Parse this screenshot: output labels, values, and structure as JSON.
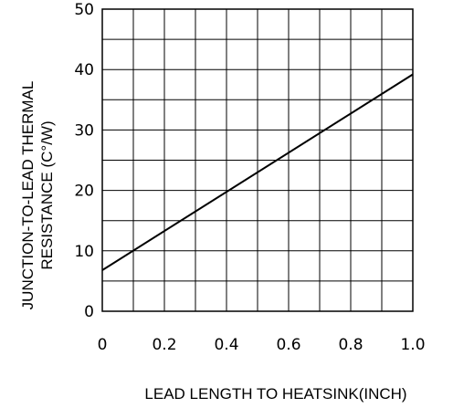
{
  "chart_data": {
    "type": "line",
    "title": "",
    "xlabel": "LEAD LENGTH TO HEATSINK(INCH)",
    "ylabel_lines": [
      "JUNCTION-TO-LEAD THERMAL",
      "RESISTANCE (C°/W)"
    ],
    "xlim": [
      0,
      1.0
    ],
    "ylim": [
      0,
      50
    ],
    "x_ticks": [
      "0",
      "0.2",
      "0.4",
      "0.6",
      "0.8",
      "1.0"
    ],
    "y_ticks": [
      "0",
      "10",
      "20",
      "30",
      "40",
      "50"
    ],
    "x_grid_values": [
      0,
      0.1,
      0.2,
      0.3,
      0.4,
      0.5,
      0.6,
      0.7,
      0.8,
      0.9,
      1.0
    ],
    "y_grid_values": [
      0,
      5,
      10,
      15,
      20,
      25,
      30,
      35,
      40,
      45,
      50
    ],
    "grid": true,
    "series": [
      {
        "x": [
          0,
          1.0
        ],
        "y": [
          6.8,
          39.2
        ]
      }
    ],
    "line_color": "#000000"
  }
}
